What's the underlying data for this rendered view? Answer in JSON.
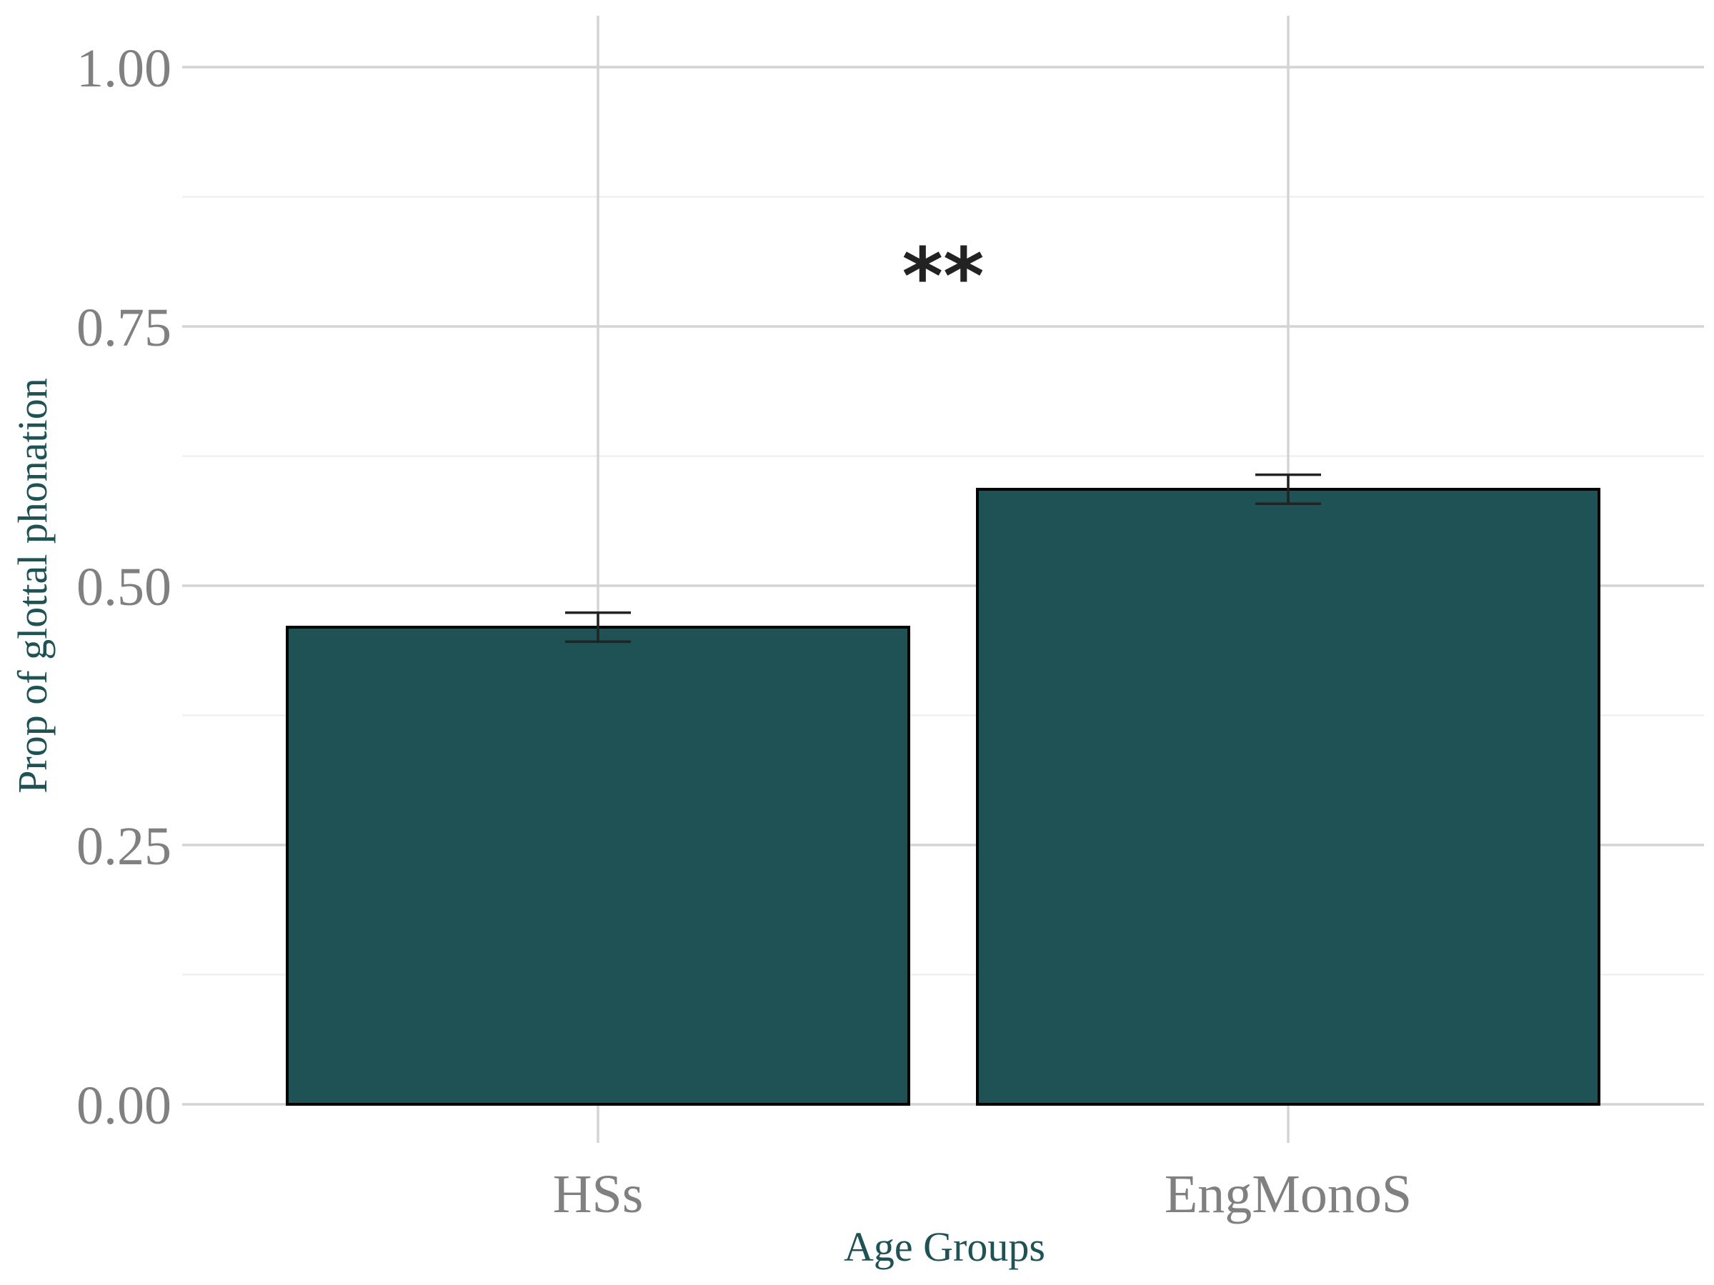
{
  "chart_data": {
    "type": "bar",
    "categories": [
      "HSs",
      "EngMonoS"
    ],
    "values": [
      0.46,
      0.593
    ],
    "error_bars": [
      {
        "lower": 0.446,
        "upper": 0.474
      },
      {
        "lower": 0.579,
        "upper": 0.607
      }
    ],
    "xlabel": "Age Groups",
    "ylabel": "Prop of glottal phonation",
    "ylim": [
      0,
      1.0
    ],
    "yticks": [
      "0.00",
      "0.25",
      "0.50",
      "0.75",
      "1.00"
    ],
    "ytick_values": [
      0,
      0.25,
      0.5,
      0.75,
      1.0
    ],
    "minor_ytick_values": [
      0.125,
      0.375,
      0.625,
      0.875
    ],
    "grid": true,
    "legend": "none",
    "annotations": [
      {
        "text": "**",
        "x_between": [
          0,
          1
        ],
        "y": 0.81
      }
    ],
    "colors": {
      "bar_fill": "#1e5254",
      "bar_edge": "#000000",
      "axis_title": "#1e5254",
      "tick_label": "#808080",
      "grid_major": "#d4d4d4",
      "grid_minor": "#ececec",
      "annotation": "#222222"
    }
  }
}
